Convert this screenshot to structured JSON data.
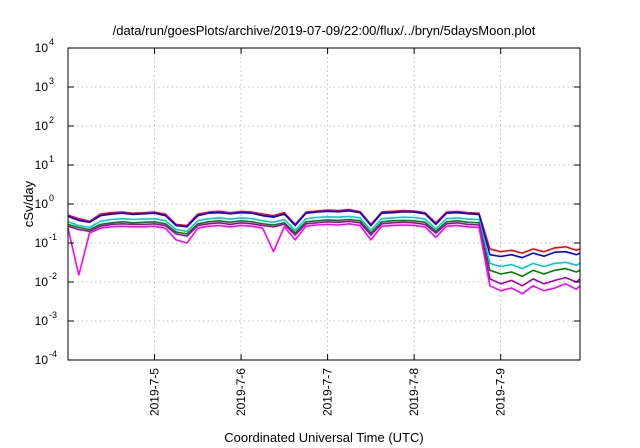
{
  "chart_data": {
    "type": "line",
    "title": "/data/run/goesPlots/archive/2019-07-09/22:00/flux/../bryn/5daysMoon.plot",
    "xlabel": "Coordinated Universal Time (UTC)",
    "ylabel": "cSv/day",
    "xlim": [
      "2019-07-04T00:00",
      "2019-07-09T22:00"
    ],
    "ylim": [
      0.0001,
      10000
    ],
    "yscale": "log",
    "grid": true,
    "x_ticks": [
      "2019-7-5",
      "2019-7-6",
      "2019-7-7",
      "2019-7-8",
      "2019-7-9"
    ],
    "y_ticks": [
      {
        "base": "10",
        "exp": "-4",
        "value": 0.0001
      },
      {
        "base": "10",
        "exp": "-3",
        "value": 0.001
      },
      {
        "base": "10",
        "exp": "-2",
        "value": 0.01
      },
      {
        "base": "10",
        "exp": "-1",
        "value": 0.1
      },
      {
        "base": "10",
        "exp": "0",
        "value": 1
      },
      {
        "base": "10",
        "exp": "1",
        "value": 10
      },
      {
        "base": "10",
        "exp": "2",
        "value": 100
      },
      {
        "base": "10",
        "exp": "3",
        "value": 1000
      },
      {
        "base": "10",
        "exp": "4",
        "value": 10000
      }
    ],
    "x": [
      "2019-07-04T00:00",
      "2019-07-04T03:00",
      "2019-07-04T06:00",
      "2019-07-04T09:00",
      "2019-07-04T12:00",
      "2019-07-04T15:00",
      "2019-07-04T18:00",
      "2019-07-04T21:00",
      "2019-07-05T00:00",
      "2019-07-05T03:00",
      "2019-07-05T06:00",
      "2019-07-05T09:00",
      "2019-07-05T12:00",
      "2019-07-05T15:00",
      "2019-07-05T18:00",
      "2019-07-05T21:00",
      "2019-07-06T00:00",
      "2019-07-06T03:00",
      "2019-07-06T06:00",
      "2019-07-06T09:00",
      "2019-07-06T12:00",
      "2019-07-06T15:00",
      "2019-07-06T18:00",
      "2019-07-06T21:00",
      "2019-07-07T00:00",
      "2019-07-07T03:00",
      "2019-07-07T06:00",
      "2019-07-07T09:00",
      "2019-07-07T12:00",
      "2019-07-07T15:00",
      "2019-07-07T18:00",
      "2019-07-07T21:00",
      "2019-07-08T00:00",
      "2019-07-08T03:00",
      "2019-07-08T06:00",
      "2019-07-08T09:00",
      "2019-07-08T12:00",
      "2019-07-08T15:00",
      "2019-07-08T18:00",
      "2019-07-08T21:00",
      "2019-07-09T00:00",
      "2019-07-09T03:00",
      "2019-07-09T06:00",
      "2019-07-09T09:00",
      "2019-07-09T12:00",
      "2019-07-09T15:00",
      "2019-07-09T18:00",
      "2019-07-09T21:00",
      "2019-07-09T22:00"
    ],
    "series": [
      {
        "color": "#ff0000",
        "values": [
          0.52,
          0.42,
          0.36,
          0.55,
          0.6,
          0.62,
          0.58,
          0.6,
          0.62,
          0.55,
          0.3,
          0.28,
          0.55,
          0.62,
          0.65,
          0.6,
          0.64,
          0.62,
          0.55,
          0.5,
          0.6,
          0.3,
          0.62,
          0.66,
          0.7,
          0.68,
          0.72,
          0.64,
          0.3,
          0.62,
          0.65,
          0.68,
          0.66,
          0.6,
          0.33,
          0.62,
          0.64,
          0.6,
          0.58,
          0.07,
          0.06,
          0.065,
          0.055,
          0.07,
          0.06,
          0.075,
          0.08,
          0.065,
          0.07
        ]
      },
      {
        "color": "#0000ff",
        "values": [
          0.48,
          0.38,
          0.34,
          0.5,
          0.55,
          0.58,
          0.54,
          0.56,
          0.58,
          0.5,
          0.28,
          0.26,
          0.5,
          0.58,
          0.6,
          0.56,
          0.6,
          0.58,
          0.5,
          0.46,
          0.55,
          0.28,
          0.58,
          0.62,
          0.65,
          0.63,
          0.67,
          0.6,
          0.28,
          0.58,
          0.6,
          0.63,
          0.62,
          0.56,
          0.3,
          0.58,
          0.6,
          0.56,
          0.54,
          0.05,
          0.045,
          0.05,
          0.042,
          0.055,
          0.046,
          0.058,
          0.06,
          0.05,
          0.055
        ]
      },
      {
        "color": "#00cccc",
        "values": [
          0.35,
          0.28,
          0.25,
          0.36,
          0.4,
          0.42,
          0.4,
          0.41,
          0.42,
          0.37,
          0.22,
          0.2,
          0.37,
          0.42,
          0.44,
          0.41,
          0.44,
          0.42,
          0.37,
          0.34,
          0.4,
          0.21,
          0.42,
          0.45,
          0.47,
          0.46,
          0.48,
          0.44,
          0.21,
          0.42,
          0.44,
          0.46,
          0.45,
          0.41,
          0.23,
          0.42,
          0.44,
          0.41,
          0.4,
          0.03,
          0.025,
          0.028,
          0.022,
          0.03,
          0.025,
          0.03,
          0.032,
          0.027,
          0.03
        ]
      },
      {
        "color": "#008000",
        "values": [
          0.3,
          0.25,
          0.22,
          0.3,
          0.33,
          0.35,
          0.33,
          0.34,
          0.35,
          0.31,
          0.19,
          0.17,
          0.31,
          0.35,
          0.37,
          0.34,
          0.37,
          0.35,
          0.31,
          0.29,
          0.33,
          0.18,
          0.35,
          0.37,
          0.39,
          0.38,
          0.4,
          0.37,
          0.18,
          0.35,
          0.37,
          0.38,
          0.37,
          0.34,
          0.2,
          0.35,
          0.37,
          0.34,
          0.33,
          0.02,
          0.016,
          0.018,
          0.014,
          0.02,
          0.016,
          0.02,
          0.022,
          0.018,
          0.02
        ]
      },
      {
        "color": "#aa00aa",
        "values": [
          0.27,
          0.22,
          0.2,
          0.27,
          0.3,
          0.31,
          0.3,
          0.3,
          0.31,
          0.28,
          0.17,
          0.15,
          0.28,
          0.31,
          0.33,
          0.3,
          0.33,
          0.31,
          0.28,
          0.26,
          0.3,
          0.16,
          0.31,
          0.33,
          0.35,
          0.34,
          0.36,
          0.33,
          0.16,
          0.31,
          0.33,
          0.34,
          0.33,
          0.3,
          0.18,
          0.31,
          0.33,
          0.3,
          0.29,
          0.012,
          0.009,
          0.011,
          0.008,
          0.012,
          0.009,
          0.011,
          0.013,
          0.01,
          0.012
        ]
      },
      {
        "color": "#ff00ff",
        "values": [
          0.24,
          0.015,
          0.18,
          0.24,
          0.26,
          0.27,
          0.26,
          0.26,
          0.27,
          0.24,
          0.12,
          0.1,
          0.24,
          0.27,
          0.28,
          0.26,
          0.28,
          0.27,
          0.24,
          0.06,
          0.26,
          0.12,
          0.27,
          0.29,
          0.3,
          0.29,
          0.31,
          0.28,
          0.12,
          0.27,
          0.28,
          0.29,
          0.28,
          0.26,
          0.14,
          0.27,
          0.28,
          0.26,
          0.25,
          0.008,
          0.006,
          0.007,
          0.005,
          0.008,
          0.006,
          0.007,
          0.009,
          0.0065,
          0.008
        ]
      }
    ]
  }
}
